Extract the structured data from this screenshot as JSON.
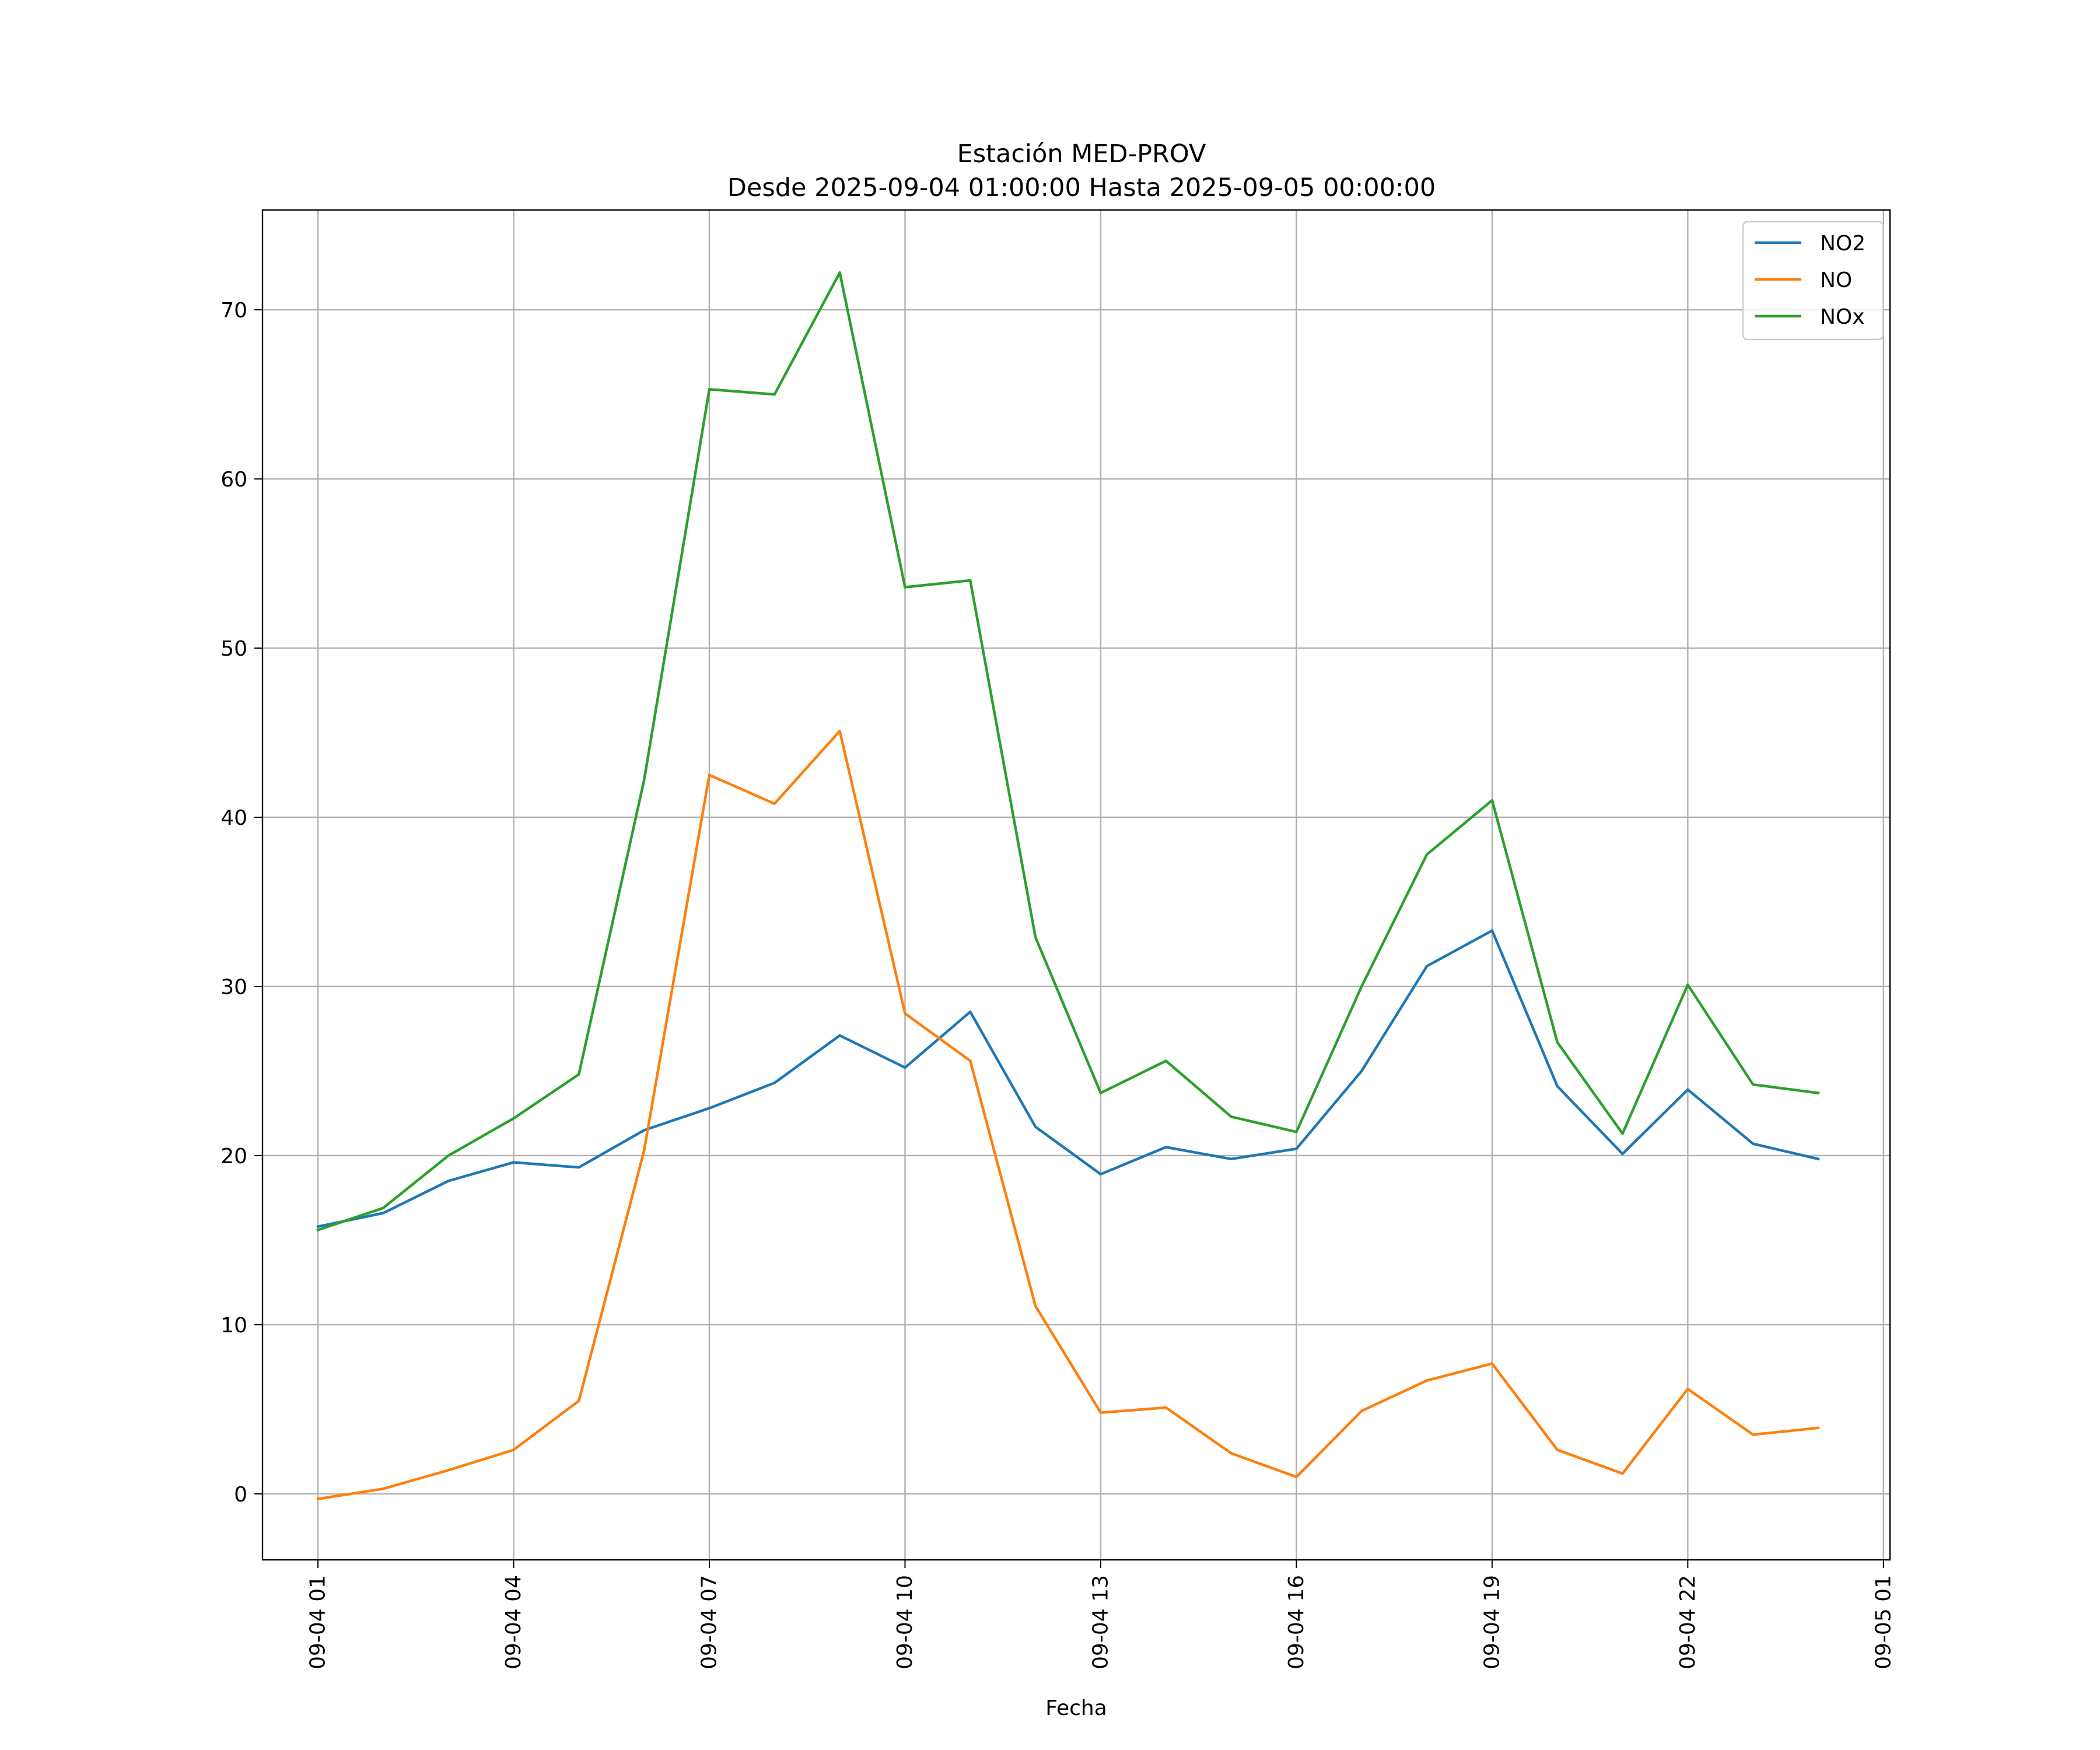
{
  "chart_data": {
    "type": "line",
    "title": "Estación MED-PROV",
    "subtitle": "Desde 2025-09-04 01:00:00 Hasta 2025-09-05 00:00:00",
    "xlabel": "Fecha",
    "ylabel": "",
    "x": [
      "2025-09-04 01:00",
      "2025-09-04 02:00",
      "2025-09-04 03:00",
      "2025-09-04 04:00",
      "2025-09-04 05:00",
      "2025-09-04 06:00",
      "2025-09-04 07:00",
      "2025-09-04 08:00",
      "2025-09-04 09:00",
      "2025-09-04 10:00",
      "2025-09-04 11:00",
      "2025-09-04 12:00",
      "2025-09-04 13:00",
      "2025-09-04 14:00",
      "2025-09-04 15:00",
      "2025-09-04 16:00",
      "2025-09-04 17:00",
      "2025-09-04 18:00",
      "2025-09-04 19:00",
      "2025-09-04 20:00",
      "2025-09-04 21:00",
      "2025-09-04 22:00",
      "2025-09-04 23:00",
      "2025-09-05 00:00"
    ],
    "xlim": [
      "2025-09-04 00:09",
      "2025-09-05 01:06"
    ],
    "x_ticks": [
      "2025-09-04 01:00",
      "2025-09-04 04:00",
      "2025-09-04 07:00",
      "2025-09-04 10:00",
      "2025-09-04 13:00",
      "2025-09-04 16:00",
      "2025-09-04 19:00",
      "2025-09-04 22:00",
      "2025-09-05 01:00"
    ],
    "x_tick_labels": [
      "09-04 01",
      "09-04 04",
      "09-04 07",
      "09-04 10",
      "09-04 13",
      "09-04 16",
      "09-04 19",
      "09-04 22",
      "09-05 01"
    ],
    "ylim": [
      -3.9,
      75.9
    ],
    "y_ticks": [
      0,
      10,
      20,
      30,
      40,
      50,
      60,
      70
    ],
    "y_tick_labels": [
      "0",
      "10",
      "20",
      "30",
      "40",
      "50",
      "60",
      "70"
    ],
    "grid": true,
    "legend_position": "top-right",
    "series": [
      {
        "name": "NO2",
        "color": "#1f77b4",
        "values": [
          15.8,
          16.6,
          18.5,
          19.6,
          19.3,
          21.5,
          22.8,
          24.3,
          27.1,
          25.2,
          28.5,
          21.7,
          18.9,
          20.5,
          19.8,
          20.4,
          25.0,
          31.2,
          33.3,
          24.1,
          20.1,
          23.9,
          20.7,
          19.8
        ]
      },
      {
        "name": "NO",
        "color": "#ff7f0e",
        "values": [
          -0.3,
          0.3,
          1.4,
          2.6,
          5.5,
          20.3,
          42.5,
          40.8,
          45.1,
          28.4,
          25.6,
          11.1,
          4.8,
          5.1,
          2.4,
          1.0,
          4.9,
          6.7,
          7.7,
          2.6,
          1.2,
          6.2,
          3.5,
          3.9
        ]
      },
      {
        "name": "NOx",
        "color": "#2ca02c",
        "values": [
          15.6,
          16.9,
          20.0,
          22.2,
          24.8,
          42.2,
          65.3,
          65.0,
          72.2,
          53.6,
          54.0,
          32.9,
          23.7,
          25.6,
          22.3,
          21.4,
          30.0,
          37.8,
          41.0,
          26.7,
          21.3,
          30.1,
          24.2,
          23.7
        ]
      }
    ]
  }
}
